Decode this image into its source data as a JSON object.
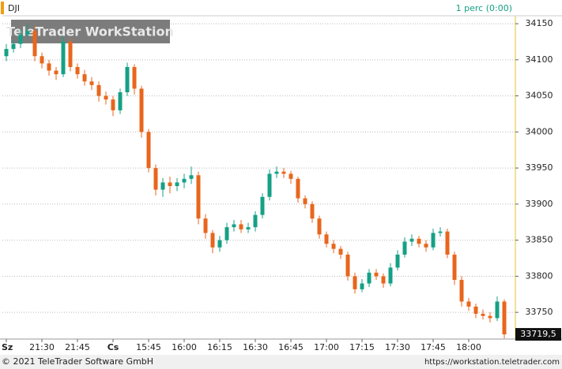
{
  "header": {
    "symbol": "DJI",
    "interval": "1 perc (0:00)"
  },
  "watermark": "TeleTrader WorkStation",
  "footer": {
    "copyright": "© 2021 TeleTrader Software GmbH",
    "url": "https://workstation.teletrader.com"
  },
  "chart_data": {
    "type": "candlestick",
    "categories": [
      "Sz",
      null,
      null,
      null,
      null,
      "21:30",
      null,
      null,
      null,
      null,
      "21:45",
      null,
      null,
      null,
      null,
      "Cs",
      null,
      null,
      null,
      null,
      "15:45",
      null,
      null,
      null,
      null,
      "16:00",
      null,
      null,
      null,
      null,
      "16:15",
      null,
      null,
      null,
      null,
      "16:30",
      null,
      null,
      null,
      null,
      "16:45",
      null,
      null,
      null,
      null,
      "17:00",
      null,
      null,
      null,
      null,
      "17:15",
      null,
      null,
      null,
      null,
      "17:30",
      null,
      null,
      null,
      null,
      "17:45",
      null,
      null,
      null,
      null,
      "18:00",
      null,
      null,
      null,
      null,
      null
    ],
    "open": [
      34105,
      34115,
      34122,
      34135,
      34140,
      34105,
      34095,
      34085,
      34080,
      34125,
      34090,
      34080,
      34070,
      34065,
      34050,
      34045,
      34030,
      34055,
      34090,
      34060,
      34000,
      33950,
      33920,
      33930,
      33925,
      33930,
      33935,
      33940,
      33880,
      33860,
      33840,
      33850,
      33868,
      33872,
      33865,
      33868,
      33885,
      33910,
      33942,
      33945,
      33942,
      33935,
      33908,
      33900,
      33880,
      33858,
      33845,
      33838,
      33830,
      33800,
      33782,
      33790,
      33805,
      33800,
      33790,
      33812,
      33830,
      33848,
      33852,
      33845,
      33840,
      33860,
      33862,
      33830,
      33795,
      33765,
      33758,
      33748,
      33745,
      33742,
      33765
    ],
    "high": [
      34122,
      34128,
      34142,
      34150,
      34146,
      34110,
      34100,
      34090,
      34133,
      34130,
      34095,
      34086,
      34076,
      34070,
      34056,
      34050,
      34060,
      34096,
      34094,
      34064,
      34004,
      33955,
      33936,
      33938,
      33936,
      33942,
      33952,
      33945,
      33886,
      33864,
      33856,
      33874,
      33878,
      33878,
      33874,
      33890,
      33915,
      33948,
      33952,
      33950,
      33946,
      33938,
      33912,
      33904,
      33884,
      33862,
      33850,
      33842,
      33834,
      33805,
      33796,
      33810,
      33810,
      33804,
      33818,
      33836,
      33854,
      33858,
      33856,
      33850,
      33866,
      33868,
      33866,
      33834,
      33800,
      33770,
      33762,
      33754,
      33750,
      33772,
      33768
    ],
    "low": [
      34098,
      34110,
      34116,
      34130,
      34098,
      34088,
      34078,
      34072,
      34076,
      34084,
      34074,
      34064,
      34058,
      34042,
      34038,
      34022,
      34025,
      34050,
      34052,
      33992,
      33944,
      33912,
      33910,
      33915,
      33918,
      33922,
      33928,
      33872,
      33852,
      33832,
      33834,
      33845,
      33862,
      33860,
      33860,
      33862,
      33880,
      33905,
      33936,
      33936,
      33928,
      33902,
      33894,
      33874,
      33852,
      33840,
      33832,
      33824,
      33794,
      33776,
      33778,
      33785,
      33795,
      33784,
      33786,
      33808,
      33826,
      33842,
      33840,
      33834,
      33836,
      33855,
      33825,
      33788,
      33758,
      33752,
      33742,
      33740,
      33736,
      33738,
      33714
    ],
    "close": [
      34115,
      34122,
      34135,
      34140,
      34105,
      34095,
      34085,
      34080,
      34125,
      34090,
      34080,
      34070,
      34065,
      34050,
      34045,
      34030,
      34055,
      34090,
      34060,
      34000,
      33950,
      33920,
      33930,
      33925,
      33930,
      33935,
      33940,
      33880,
      33860,
      33840,
      33850,
      33868,
      33872,
      33865,
      33868,
      33885,
      33910,
      33942,
      33945,
      33942,
      33935,
      33908,
      33900,
      33880,
      33858,
      33845,
      33838,
      33830,
      33800,
      33782,
      33790,
      33805,
      33800,
      33790,
      33812,
      33830,
      33848,
      33852,
      33845,
      33840,
      33860,
      33862,
      33830,
      33795,
      33765,
      33758,
      33748,
      33745,
      33742,
      33765,
      33719.5
    ],
    "up_color": "#16a085",
    "down_color": "#e8661c",
    "ylim": [
      33713,
      34161
    ],
    "yticks": [
      33750,
      33800,
      33850,
      33900,
      33950,
      34000,
      34050,
      34100,
      34150
    ],
    "last": {
      "value": 33719.5,
      "label": "33719,5"
    },
    "grid": true
  }
}
